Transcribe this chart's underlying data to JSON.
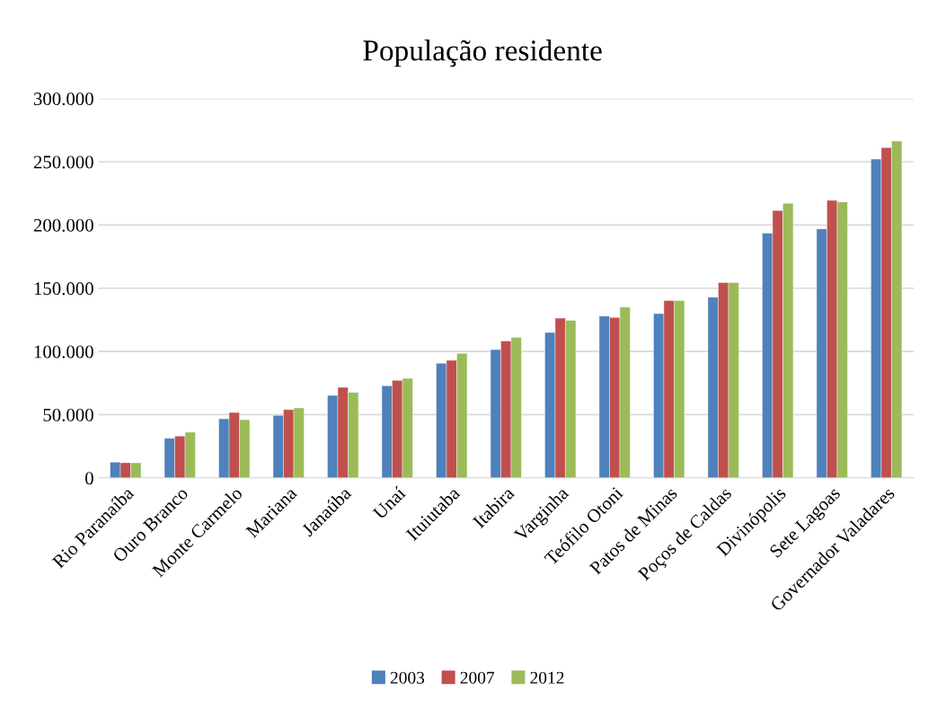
{
  "chart_data": {
    "type": "bar",
    "title": "População residente",
    "categories": [
      "Rio Paranaíba",
      "Ouro Branco",
      "Monte Carmelo",
      "Mariana",
      "Janaúba",
      "Unaí",
      "Ituiutaba",
      "Itabira",
      "Varginha",
      "Teófilo Otoni",
      "Patos de Minas",
      "Poços de Caldas",
      "Divinópolis",
      "Sete Lagoas",
      "Governador Valadares"
    ],
    "series": [
      {
        "name": "2003",
        "color": "#4f81bd",
        "values": [
          12400,
          31300,
          46700,
          49400,
          65200,
          72800,
          90600,
          101400,
          115000,
          128000,
          129900,
          142900,
          193600,
          196900,
          252100
        ]
      },
      {
        "name": "2007",
        "color": "#c0504d",
        "values": [
          12000,
          33000,
          51700,
          54000,
          71600,
          77100,
          93000,
          108300,
          126300,
          126800,
          140300,
          154500,
          211400,
          219500,
          261200
        ]
      },
      {
        "name": "2012",
        "color": "#9bbb59",
        "values": [
          11900,
          36100,
          46000,
          55300,
          67600,
          78700,
          98400,
          111000,
          124600,
          135100,
          140300,
          154500,
          217100,
          218300,
          266400
        ]
      }
    ],
    "ylim": [
      0,
      300000
    ],
    "yticks": [
      {
        "value": 0,
        "label": "0"
      },
      {
        "value": 50000,
        "label": "50.000"
      },
      {
        "value": 100000,
        "label": "100.000"
      },
      {
        "value": 150000,
        "label": "150.000"
      },
      {
        "value": 200000,
        "label": "200.000"
      },
      {
        "value": 250000,
        "label": "250.000"
      },
      {
        "value": 300000,
        "label": "300.000"
      }
    ],
    "grid": "y",
    "legend": "bottom"
  }
}
